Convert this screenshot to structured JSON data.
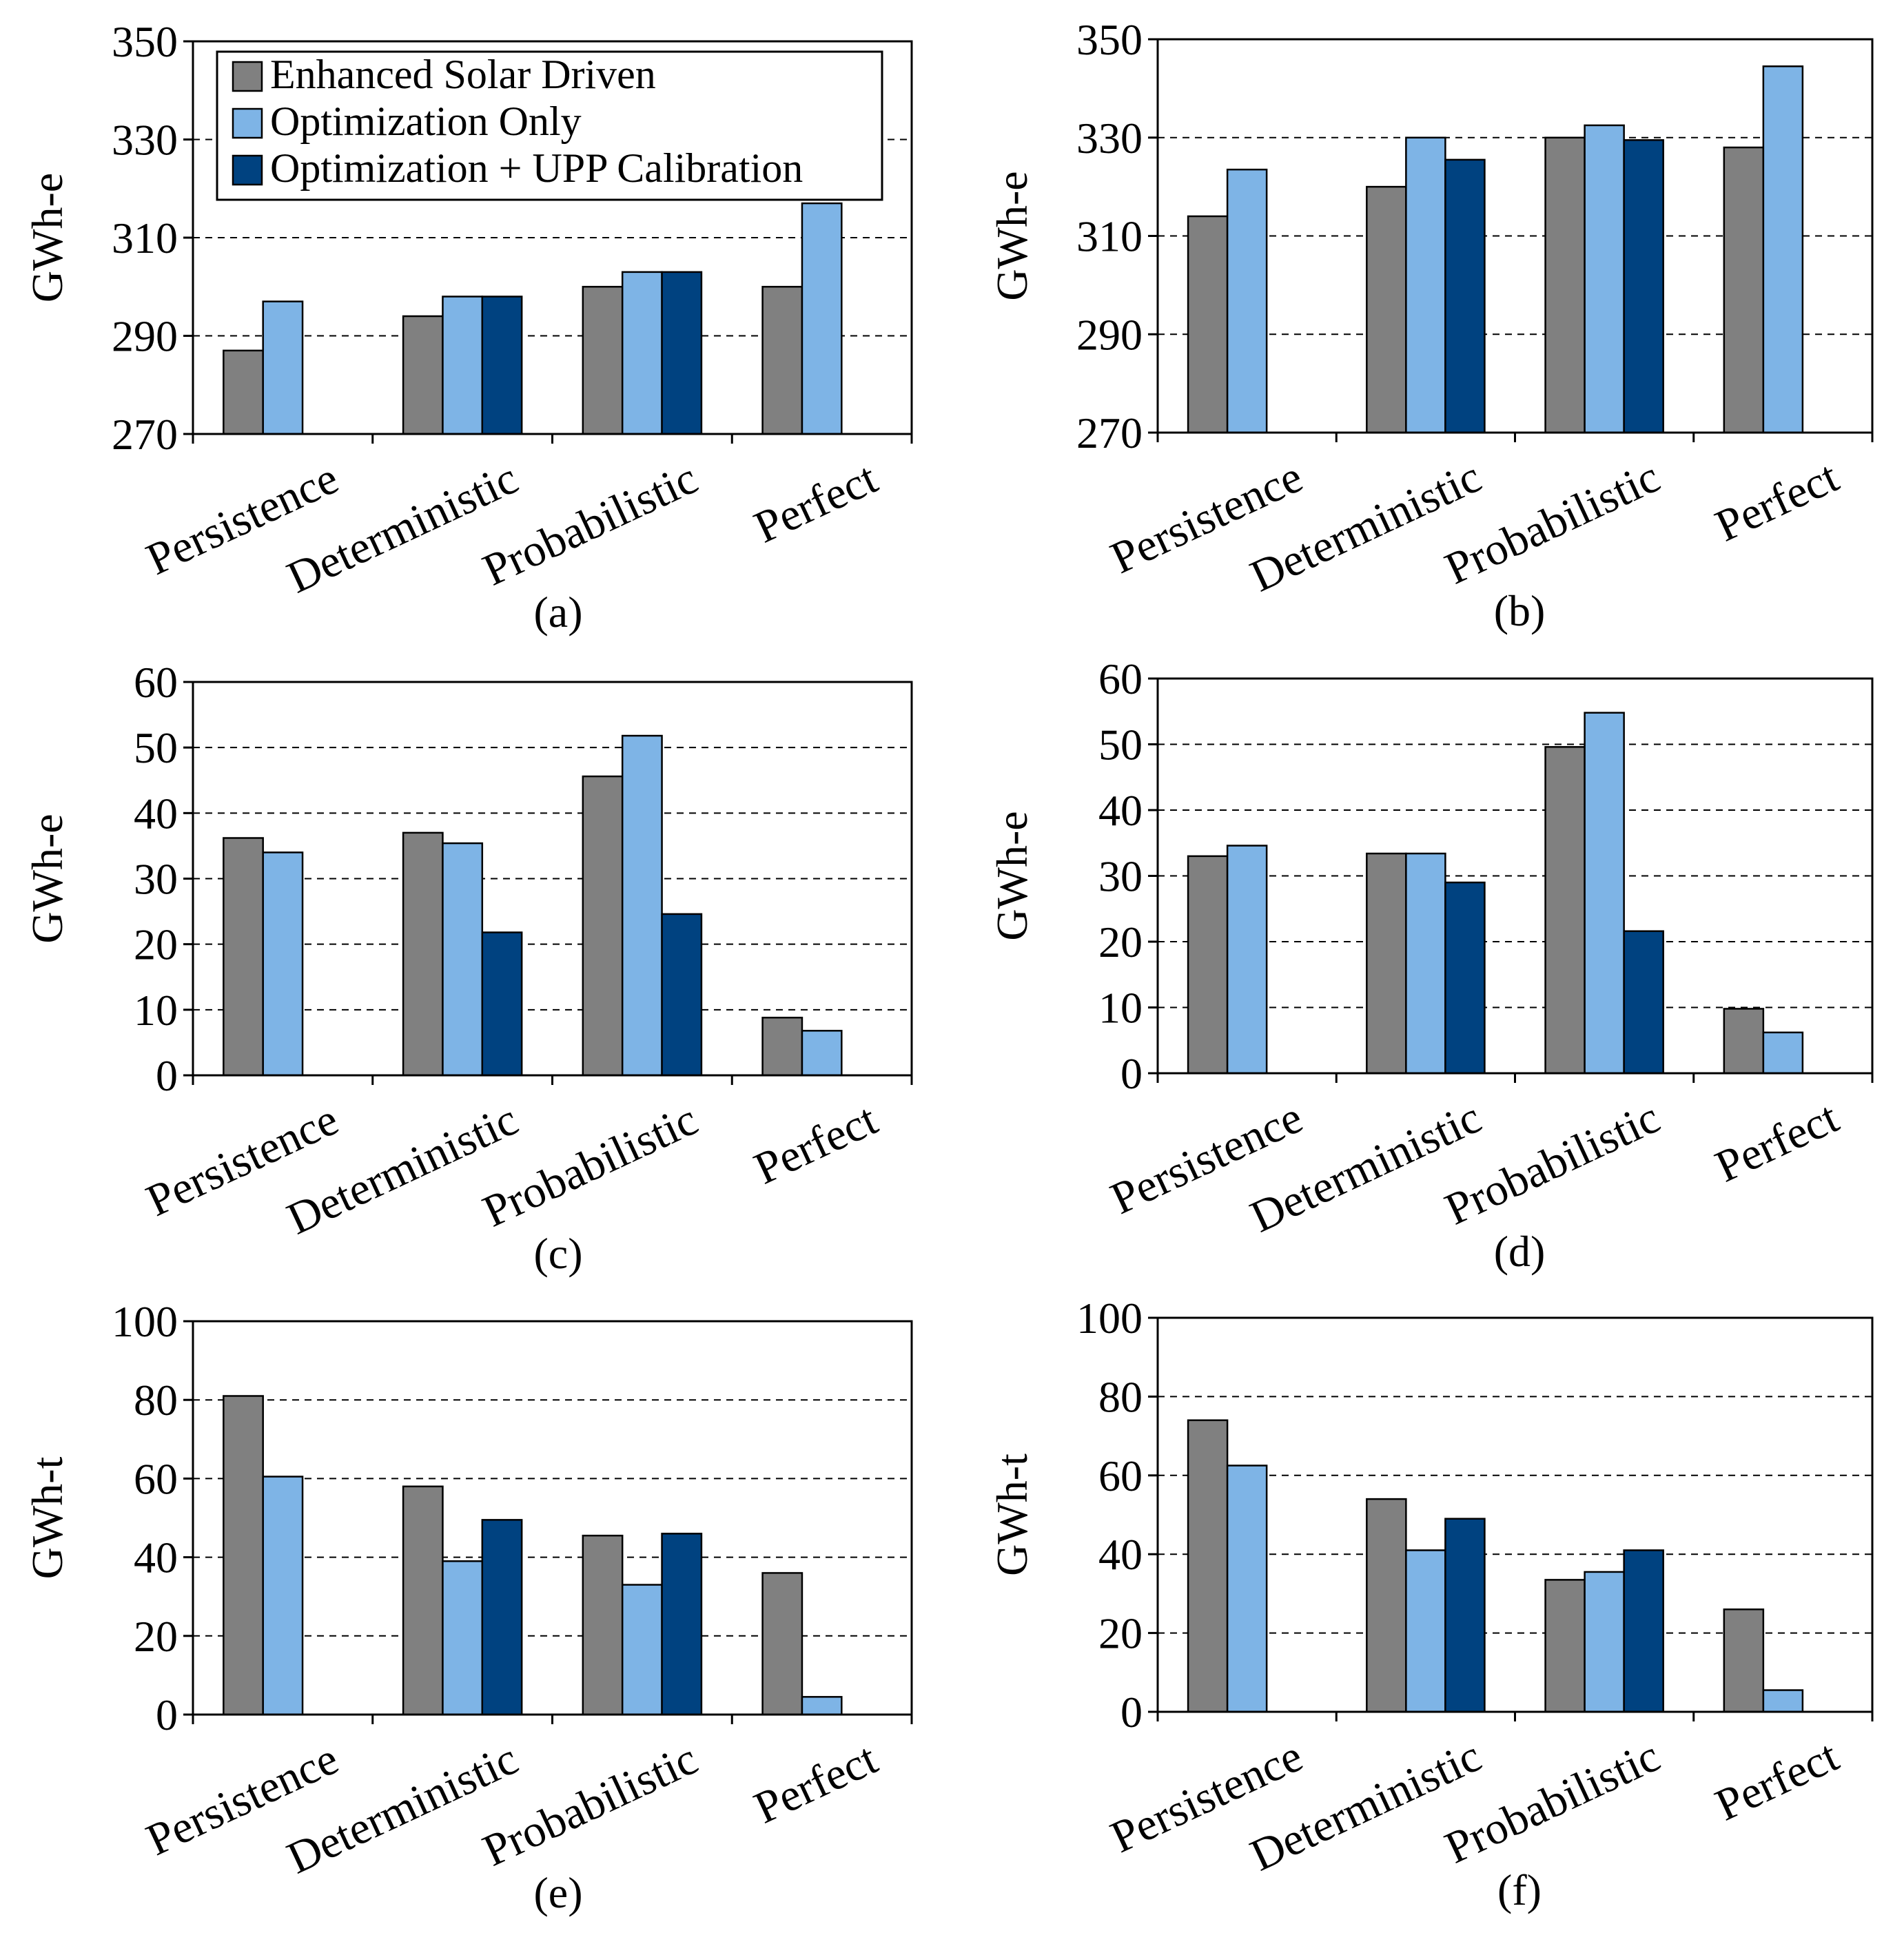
{
  "legend": {
    "items": [
      {
        "label": "Enhanced Solar Driven",
        "color": "#808080"
      },
      {
        "label": "Optimization Only",
        "color": "#7EB4E6"
      },
      {
        "label": "Optimization + UPP Calibration",
        "color": "#004280"
      }
    ]
  },
  "chart_data": [
    {
      "panel": "(a)",
      "type": "bar",
      "ylabel": "GWh-e",
      "ylim": [
        270,
        350
      ],
      "yticks": [
        270,
        290,
        310,
        330,
        350
      ],
      "grid": true,
      "categories": [
        "Persistence",
        "Deterministic",
        "Probabilistic",
        "Perfect"
      ],
      "series": [
        {
          "name": "Enhanced Solar Driven",
          "values": [
            287,
            294,
            300,
            300
          ]
        },
        {
          "name": "Optimization Only",
          "values": [
            297,
            298,
            303,
            317
          ]
        },
        {
          "name": "Optimization + UPP Calibration",
          "values": [
            null,
            298,
            303,
            null
          ]
        }
      ]
    },
    {
      "panel": "(b)",
      "type": "bar",
      "ylabel": "GWh-e",
      "ylim": [
        270,
        350
      ],
      "yticks": [
        270,
        290,
        310,
        330,
        350
      ],
      "grid": true,
      "categories": [
        "Persistence",
        "Deterministic",
        "Probabilistic",
        "Perfect"
      ],
      "series": [
        {
          "name": "Enhanced Solar Driven",
          "values": [
            314,
            320,
            330,
            328
          ]
        },
        {
          "name": "Optimization Only",
          "values": [
            323.5,
            330,
            332.5,
            344.5
          ]
        },
        {
          "name": "Optimization + UPP Calibration",
          "values": [
            null,
            325.5,
            329.5,
            null
          ]
        }
      ]
    },
    {
      "panel": "(c)",
      "type": "bar",
      "ylabel": "GWh-e",
      "ylim": [
        0,
        60
      ],
      "yticks": [
        0,
        10,
        20,
        30,
        40,
        50,
        60
      ],
      "grid": true,
      "categories": [
        "Persistence",
        "Deterministic",
        "Probabilistic",
        "Perfect"
      ],
      "series": [
        {
          "name": "Enhanced Solar Driven",
          "values": [
            36.2,
            37,
            45.6,
            8.8
          ]
        },
        {
          "name": "Optimization Only",
          "values": [
            34,
            35.4,
            51.8,
            6.8
          ]
        },
        {
          "name": "Optimization + UPP Calibration",
          "values": [
            null,
            21.8,
            24.6,
            null
          ]
        }
      ]
    },
    {
      "panel": "(d)",
      "type": "bar",
      "ylabel": "GWh-e",
      "ylim": [
        0,
        60
      ],
      "yticks": [
        0,
        10,
        20,
        30,
        40,
        50,
        60
      ],
      "grid": true,
      "categories": [
        "Persistence",
        "Deterministic",
        "Probabilistic",
        "Perfect"
      ],
      "series": [
        {
          "name": "Enhanced Solar Driven",
          "values": [
            33,
            33.4,
            49.6,
            9.8
          ]
        },
        {
          "name": "Optimization Only",
          "values": [
            34.6,
            33.4,
            54.8,
            6.2
          ]
        },
        {
          "name": "Optimization + UPP Calibration",
          "values": [
            null,
            29,
            21.6,
            null
          ]
        }
      ]
    },
    {
      "panel": "(e)",
      "type": "bar",
      "ylabel": "GWh-t",
      "ylim": [
        0,
        100
      ],
      "yticks": [
        0,
        20,
        40,
        60,
        80,
        100
      ],
      "grid": true,
      "categories": [
        "Persistence",
        "Deterministic",
        "Probabilistic",
        "Perfect"
      ],
      "series": [
        {
          "name": "Enhanced Solar Driven",
          "values": [
            81,
            58,
            45.5,
            36
          ]
        },
        {
          "name": "Optimization Only",
          "values": [
            60.5,
            39,
            33,
            4.5
          ]
        },
        {
          "name": "Optimization + UPP Calibration",
          "values": [
            null,
            49.5,
            46,
            null
          ]
        }
      ]
    },
    {
      "panel": "(f)",
      "type": "bar",
      "ylabel": "GWh-t",
      "ylim": [
        0,
        100
      ],
      "yticks": [
        0,
        20,
        40,
        60,
        80,
        100
      ],
      "grid": true,
      "categories": [
        "Persistence",
        "Deterministic",
        "Probabilistic",
        "Perfect"
      ],
      "series": [
        {
          "name": "Enhanced Solar Driven",
          "values": [
            74,
            54,
            33.5,
            26
          ]
        },
        {
          "name": "Optimization Only",
          "values": [
            62.5,
            41,
            35.5,
            5.5
          ]
        },
        {
          "name": "Optimization + UPP Calibration",
          "values": [
            null,
            49,
            41,
            null
          ]
        }
      ]
    }
  ]
}
